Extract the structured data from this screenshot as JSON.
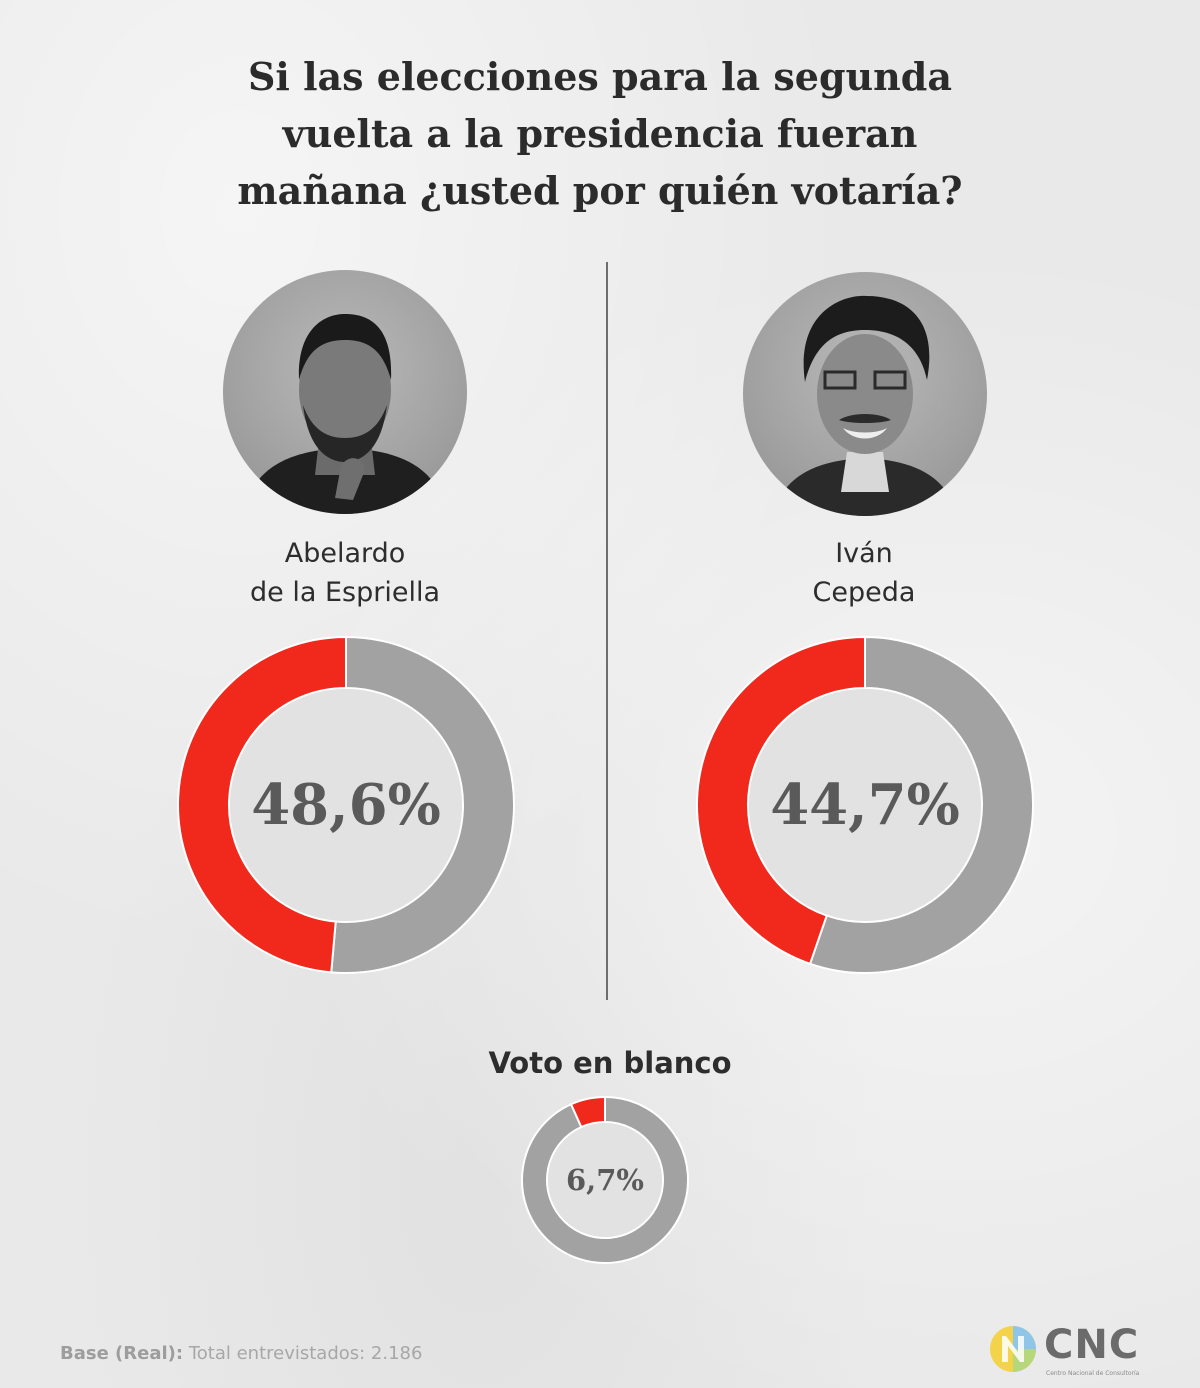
{
  "title_lines": [
    "Si las elecciones para la segunda",
    "vuelta a la presidencia fueran",
    "mañana ¿usted por quién votaría?"
  ],
  "chart_data": [
    {
      "type": "pie",
      "name_lines": [
        "Abelardo",
        "de la Espriella"
      ],
      "value": 48.6,
      "label": "48,6%",
      "colors": {
        "value": "#f0291c",
        "rest": "#a2a2a2"
      }
    },
    {
      "type": "pie",
      "name_lines": [
        "Iván",
        "Cepeda"
      ],
      "value": 44.7,
      "label": "44,7%",
      "colors": {
        "value": "#f0291c",
        "rest": "#a2a2a2"
      }
    },
    {
      "type": "pie",
      "name_lines": [
        "Voto en blanco"
      ],
      "value": 6.7,
      "label": "6,7%",
      "colors": {
        "value": "#f0291c",
        "rest": "#a2a2a2"
      }
    }
  ],
  "footer": {
    "base_label": "Base (Real):",
    "base_text": "Total entrevistados: 2.186"
  },
  "logo": {
    "text": "CNC",
    "subtitle": "Centro Nacional de Consultoría"
  }
}
